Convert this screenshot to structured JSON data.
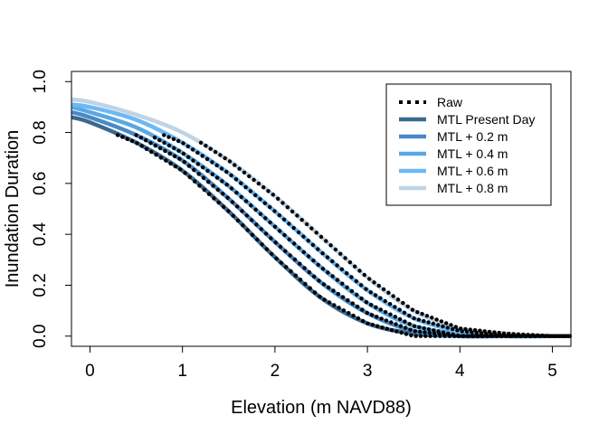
{
  "chart_data": {
    "type": "line",
    "xlabel": "Elevation (m NAVD88)",
    "ylabel": "Inundation Duration",
    "xlim": [
      -0.2,
      5.2
    ],
    "ylim": [
      -0.04,
      1.04
    ],
    "xticks": [
      "0",
      "1",
      "2",
      "3",
      "4",
      "5"
    ],
    "yticks": [
      "0.0",
      "0.2",
      "0.4",
      "0.6",
      "0.8",
      "1.0"
    ],
    "grid": false,
    "legend_position": "top-right",
    "legend": [
      "Raw",
      "MTL Present Day",
      "MTL + 0.2 m",
      "MTL + 0.4 m",
      "MTL + 0.6 m",
      "MTL + 0.8 m"
    ],
    "series": [
      {
        "name": "MTL Present Day",
        "color": "#3b6a8f",
        "style": "line",
        "x": [
          -0.2,
          0,
          0.5,
          1.0,
          1.5,
          2.0,
          2.5,
          3.0,
          3.5,
          4.0,
          4.5,
          5.0,
          5.2
        ],
        "y": [
          0.86,
          0.84,
          0.76,
          0.65,
          0.49,
          0.31,
          0.15,
          0.05,
          0.01,
          0.0,
          0.0,
          0.0,
          0.0
        ]
      },
      {
        "name": "MTL + 0.2 m",
        "color": "#4a89c8",
        "style": "line",
        "x": [
          -0.2,
          0,
          0.5,
          1.0,
          1.5,
          2.0,
          2.5,
          3.0,
          3.5,
          4.0,
          4.5,
          5.0,
          5.2
        ],
        "y": [
          0.88,
          0.86,
          0.79,
          0.69,
          0.54,
          0.37,
          0.21,
          0.09,
          0.02,
          0.0,
          0.0,
          0.0,
          0.0
        ]
      },
      {
        "name": "MTL + 0.4 m",
        "color": "#5aa7e3",
        "style": "line",
        "x": [
          -0.2,
          0,
          0.5,
          1.0,
          1.5,
          2.0,
          2.5,
          3.0,
          3.5,
          4.0,
          4.5,
          5.0,
          5.2
        ],
        "y": [
          0.9,
          0.88,
          0.82,
          0.72,
          0.59,
          0.43,
          0.27,
          0.13,
          0.04,
          0.01,
          0.0,
          0.0,
          0.0
        ]
      },
      {
        "name": "MTL + 0.6 m",
        "color": "#6db8f2",
        "style": "line",
        "x": [
          -0.2,
          0,
          0.5,
          1.0,
          1.5,
          2.0,
          2.5,
          3.0,
          3.5,
          4.0,
          4.5,
          5.0,
          5.2
        ],
        "y": [
          0.91,
          0.9,
          0.85,
          0.76,
          0.64,
          0.49,
          0.33,
          0.18,
          0.07,
          0.02,
          0.0,
          0.0,
          0.0
        ]
      },
      {
        "name": "MTL + 0.8 m",
        "color": "#bfd3e6",
        "style": "line",
        "x": [
          -0.2,
          0,
          0.5,
          1.0,
          1.5,
          2.0,
          2.5,
          3.0,
          3.5,
          4.0,
          4.5,
          5.0,
          5.2
        ],
        "y": [
          0.93,
          0.92,
          0.87,
          0.8,
          0.69,
          0.55,
          0.39,
          0.23,
          0.1,
          0.03,
          0.01,
          0.0,
          0.0
        ]
      }
    ],
    "raw": [
      {
        "name": "Raw",
        "color": "#000000",
        "x": [
          0.3,
          0.5,
          1.0,
          1.5,
          2.0,
          2.5,
          3.0,
          3.5,
          4.0,
          4.5,
          5.0,
          5.2
        ],
        "y": [
          0.79,
          0.76,
          0.65,
          0.49,
          0.31,
          0.15,
          0.05,
          0.0,
          0.0,
          0.0,
          0.0,
          0.0
        ]
      },
      {
        "name": "Raw",
        "color": "#000000",
        "x": [
          0.5,
          1.0,
          1.5,
          2.0,
          2.5,
          3.0,
          3.5,
          4.0,
          4.5,
          5.0,
          5.2
        ],
        "y": [
          0.79,
          0.69,
          0.54,
          0.37,
          0.21,
          0.09,
          0.02,
          0.0,
          0.0,
          0.0,
          0.0
        ]
      },
      {
        "name": "Raw",
        "color": "#000000",
        "x": [
          0.7,
          1.0,
          1.5,
          2.0,
          2.5,
          3.0,
          3.5,
          4.0,
          4.5,
          5.0,
          5.2
        ],
        "y": [
          0.78,
          0.72,
          0.59,
          0.43,
          0.27,
          0.13,
          0.04,
          0.0,
          0.0,
          0.0,
          0.0
        ]
      },
      {
        "name": "Raw",
        "color": "#000000",
        "x": [
          0.8,
          1.0,
          1.5,
          2.0,
          2.5,
          3.0,
          3.5,
          4.0,
          4.5,
          5.0,
          5.2
        ],
        "y": [
          0.79,
          0.76,
          0.64,
          0.49,
          0.33,
          0.18,
          0.07,
          0.02,
          0.0,
          0.0,
          0.0
        ]
      },
      {
        "name": "Raw",
        "color": "#000000",
        "x": [
          1.2,
          1.5,
          2.0,
          2.5,
          3.0,
          3.5,
          4.0,
          4.5,
          5.0,
          5.2
        ],
        "y": [
          0.76,
          0.69,
          0.55,
          0.39,
          0.23,
          0.1,
          0.03,
          0.01,
          0.0,
          0.0
        ]
      }
    ]
  }
}
